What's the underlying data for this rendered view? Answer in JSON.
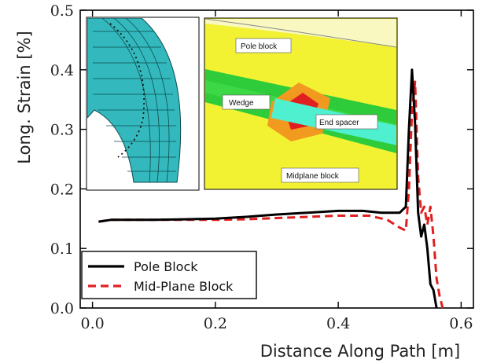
{
  "chart_data": {
    "type": "line",
    "xlabel": "Distance Along Path [m]",
    "ylabel": "Long. Strain [%]",
    "xlim": [
      -0.02,
      0.62
    ],
    "ylim": [
      0.0,
      0.5
    ],
    "xticks": [
      0.0,
      0.2,
      0.4,
      0.6
    ],
    "xtick_labels": [
      "0.0",
      "0.2",
      "0.4",
      "0.6"
    ],
    "yticks": [
      0.0,
      0.1,
      0.2,
      0.3,
      0.4,
      0.5
    ],
    "ytick_labels": [
      "0.0",
      "0.1",
      "0.2",
      "0.3",
      "0.4",
      "0.5"
    ],
    "grid": false,
    "legend_position": "bottom-left",
    "series": [
      {
        "name": "Pole Block",
        "color": "#000000",
        "style": "solid",
        "x": [
          0.01,
          0.03,
          0.05,
          0.1,
          0.15,
          0.2,
          0.25,
          0.3,
          0.35,
          0.4,
          0.44,
          0.47,
          0.5,
          0.51,
          0.515,
          0.52,
          0.525,
          0.53,
          0.535,
          0.54,
          0.545,
          0.55,
          0.555,
          0.56
        ],
        "y": [
          0.145,
          0.148,
          0.148,
          0.148,
          0.149,
          0.15,
          0.153,
          0.157,
          0.16,
          0.163,
          0.163,
          0.16,
          0.16,
          0.17,
          0.3,
          0.4,
          0.31,
          0.16,
          0.12,
          0.14,
          0.1,
          0.04,
          0.03,
          0.0
        ]
      },
      {
        "name": "Mid-Plane Block",
        "color": "#e02020",
        "style": "dashed",
        "x": [
          0.01,
          0.03,
          0.05,
          0.1,
          0.15,
          0.2,
          0.25,
          0.3,
          0.35,
          0.4,
          0.45,
          0.48,
          0.5,
          0.51,
          0.515,
          0.52,
          0.525,
          0.53,
          0.535,
          0.54,
          0.545,
          0.55,
          0.555,
          0.56,
          0.565,
          0.57
        ],
        "y": [
          0.145,
          0.148,
          0.148,
          0.148,
          0.148,
          0.148,
          0.149,
          0.151,
          0.153,
          0.155,
          0.155,
          0.148,
          0.135,
          0.13,
          0.2,
          0.33,
          0.38,
          0.22,
          0.16,
          0.17,
          0.14,
          0.17,
          0.12,
          0.05,
          0.02,
          0.0
        ]
      }
    ],
    "inset_labels": {
      "pole_block": "Pole block",
      "wedge": "Wedge",
      "end_spacer": "End spacer",
      "midplane_block": "Midplane block"
    }
  },
  "colors": {
    "pole": "#000000",
    "midplane": "#e02020",
    "mesh": "#2fb8b8",
    "contour_yellow": "#f2f233",
    "contour_green": "#2ecc3a",
    "contour_orange": "#f29a1f",
    "contour_red": "#e02020",
    "contour_cyan": "#4ff0d0"
  }
}
